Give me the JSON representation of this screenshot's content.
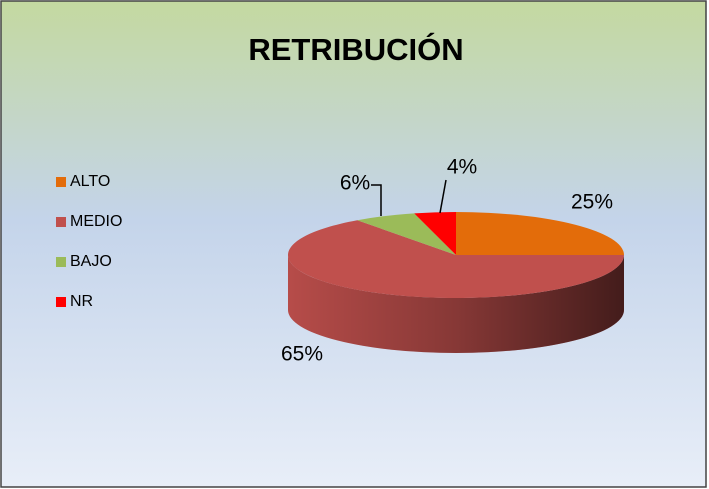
{
  "chart_data": {
    "type": "pie",
    "title": "RETRIBUCIÓN",
    "categories": [
      "ALTO",
      "MEDIO",
      "BAJO",
      "NR"
    ],
    "values": [
      25,
      65,
      6,
      4
    ],
    "value_labels": [
      "25%",
      "65%",
      "6%",
      "4%"
    ],
    "colors": [
      "#e36c0a",
      "#c0504d",
      "#9bbb59",
      "#ff0000"
    ],
    "legend": "left"
  }
}
